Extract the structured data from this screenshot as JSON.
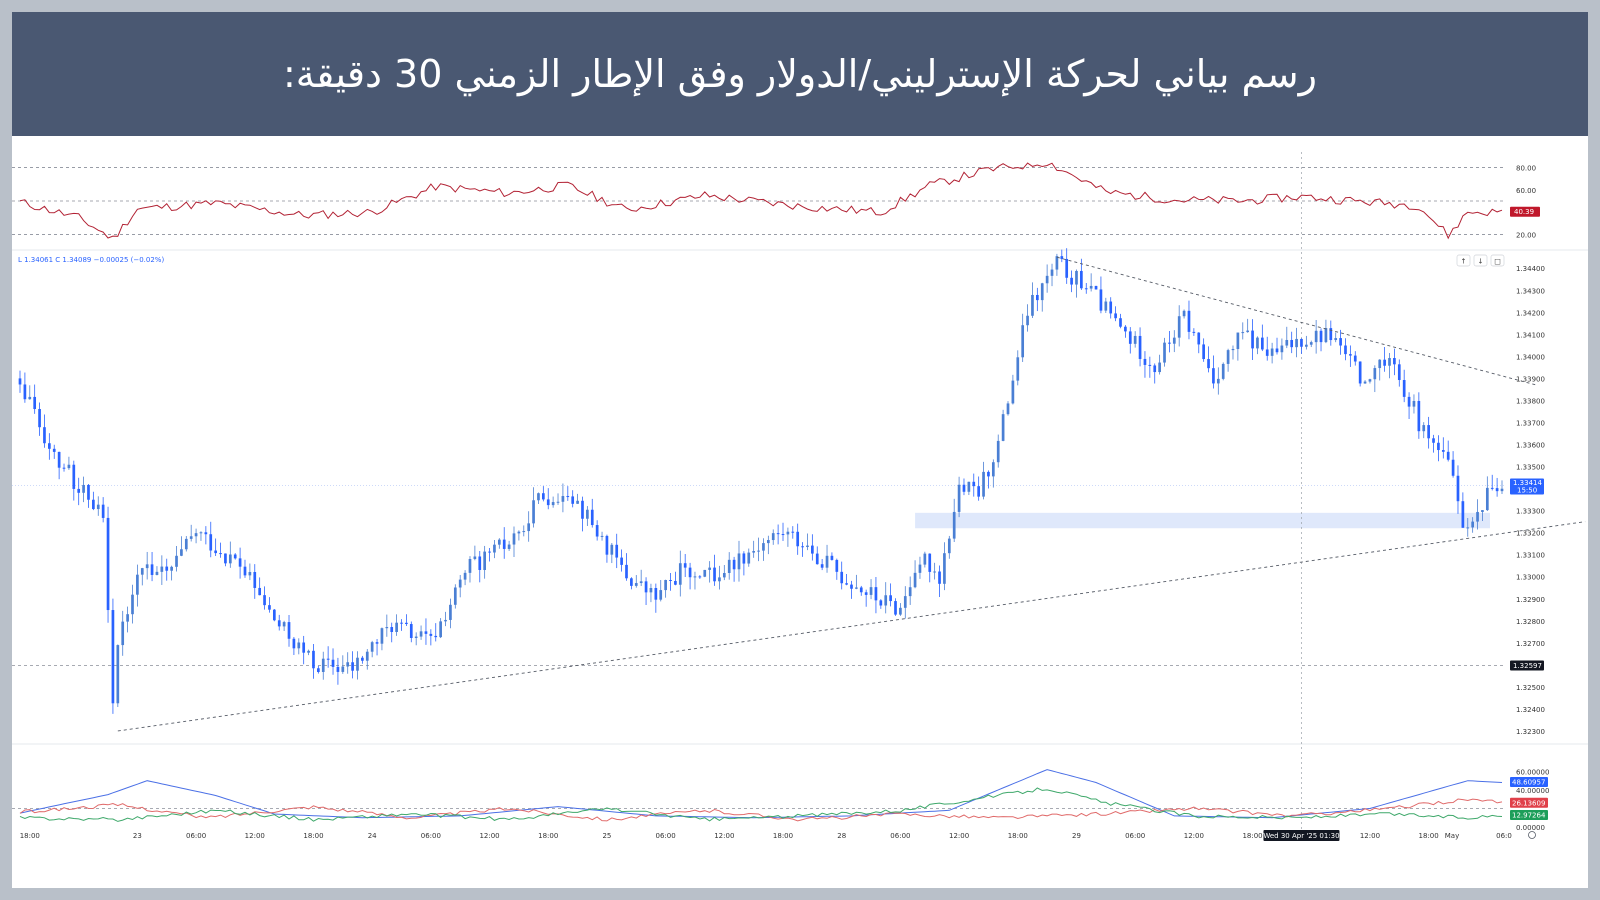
{
  "title": "رسم بياني لحركة الإسترليني/الدولار وفق الإطار الزمني 30 دقيقة:",
  "colors": {
    "header_bg": "#4a5872",
    "bull_candle": "#4a7fd4",
    "bear_candle": "#2962ff",
    "rsi_line": "#b22234",
    "support_zone": "#dbe6fb",
    "adx_line": "#4b70e6",
    "di_plus_line": "#3ea86a",
    "di_minus_line": "#e06a6a"
  },
  "info_line": "L 1.34061  C 1.34089  −0.00025 (−0.02%)",
  "chart_data": [
    {
      "type": "candlestick",
      "panel": "price",
      "ylim": [
        1.3225,
        1.3446
      ],
      "y_ticks": [
        "1.34400",
        "1.34300",
        "1.34200",
        "1.34100",
        "1.34000",
        "1.33900",
        "1.33800",
        "1.33700",
        "1.33600",
        "1.33500",
        "1.33300",
        "1.33200",
        "1.33100",
        "1.33000",
        "1.32900",
        "1.32800",
        "1.32700",
        "1.32500",
        "1.32400",
        "1.32300"
      ],
      "x_ticks": [
        "18:00",
        "23",
        "06:00",
        "12:00",
        "18:00",
        "24",
        "06:00",
        "12:00",
        "18:00",
        "25",
        "06:00",
        "12:00",
        "18:00",
        "28",
        "06:00",
        "12:00",
        "18:00",
        "29",
        "06:00",
        "12:00",
        "18:00",
        "Wed 30 Apr '25  01:30",
        "12:00",
        "18:00",
        "May",
        "06:0"
      ],
      "path_anchors": [
        [
          0,
          1.339
        ],
        [
          6,
          1.336
        ],
        [
          12,
          1.334
        ],
        [
          17,
          1.333
        ],
        [
          19,
          1.3245
        ],
        [
          20,
          1.3268
        ],
        [
          24,
          1.3305
        ],
        [
          30,
          1.33
        ],
        [
          36,
          1.332
        ],
        [
          45,
          1.3305
        ],
        [
          52,
          1.328
        ],
        [
          60,
          1.326
        ],
        [
          68,
          1.3258
        ],
        [
          76,
          1.3278
        ],
        [
          84,
          1.327
        ],
        [
          92,
          1.3305
        ],
        [
          100,
          1.3315
        ],
        [
          106,
          1.3335
        ],
        [
          112,
          1.334
        ],
        [
          118,
          1.332
        ],
        [
          124,
          1.33
        ],
        [
          130,
          1.329
        ],
        [
          136,
          1.3305
        ],
        [
          142,
          1.33
        ],
        [
          148,
          1.331
        ],
        [
          156,
          1.332
        ],
        [
          162,
          1.3312
        ],
        [
          168,
          1.33
        ],
        [
          175,
          1.329
        ],
        [
          180,
          1.3285
        ],
        [
          184,
          1.331
        ],
        [
          188,
          1.33
        ],
        [
          192,
          1.334
        ],
        [
          196,
          1.3338
        ],
        [
          200,
          1.336
        ],
        [
          206,
          1.342
        ],
        [
          212,
          1.3442
        ],
        [
          218,
          1.3432
        ],
        [
          224,
          1.3415
        ],
        [
          232,
          1.3395
        ],
        [
          238,
          1.3418
        ],
        [
          244,
          1.339
        ],
        [
          250,
          1.341
        ],
        [
          256,
          1.34
        ],
        [
          262,
          1.3408
        ],
        [
          268,
          1.341
        ],
        [
          274,
          1.339
        ],
        [
          280,
          1.3402
        ],
        [
          286,
          1.337
        ],
        [
          292,
          1.335
        ],
        [
          296,
          1.3318
        ],
        [
          300,
          1.334
        ],
        [
          303,
          1.3341
        ]
      ],
      "last_price": "1.33414",
      "countdown": "15:50",
      "marked_price": "1.32597",
      "support_zone": [
        1.3322,
        1.3329
      ],
      "ascending_trendline": [
        [
          20,
          1.323
        ],
        [
          320,
          1.3325
        ]
      ],
      "descending_trendline": [
        [
          212,
          1.3445
        ],
        [
          310,
          1.3387
        ]
      ],
      "crosshair_price": 1.3341
    },
    {
      "type": "line",
      "panel": "rsi",
      "ylim": [
        15,
        85
      ],
      "y_ticks": [
        "80.00",
        "60.00",
        "20.00"
      ],
      "levels": [
        80,
        50,
        20
      ],
      "anchors": [
        [
          0,
          49
        ],
        [
          12,
          35
        ],
        [
          19,
          16
        ],
        [
          24,
          43
        ],
        [
          40,
          48
        ],
        [
          58,
          37
        ],
        [
          72,
          40
        ],
        [
          85,
          63
        ],
        [
          100,
          57
        ],
        [
          112,
          64
        ],
        [
          124,
          42
        ],
        [
          140,
          55
        ],
        [
          160,
          45
        ],
        [
          176,
          40
        ],
        [
          186,
          64
        ],
        [
          198,
          78
        ],
        [
          210,
          85
        ],
        [
          222,
          58
        ],
        [
          236,
          51
        ],
        [
          250,
          50
        ],
        [
          262,
          54
        ],
        [
          276,
          49
        ],
        [
          286,
          46
        ],
        [
          292,
          19
        ],
        [
          296,
          40
        ],
        [
          303,
          40
        ]
      ],
      "value_label": "40.39"
    },
    {
      "type": "line",
      "panel": "adx_dmi",
      "ylim": [
        0,
        68
      ],
      "y_ticks": [
        "60.00000",
        "40.00000",
        "0.00000"
      ],
      "series": [
        {
          "name": "",
          "value_label": "48.60957",
          "anchors": [
            [
              0,
              15
            ],
            [
              18,
              35
            ],
            [
              26,
              50
            ],
            [
              40,
              34
            ],
            [
              52,
              14
            ],
            [
              70,
              10
            ],
            [
              90,
              12
            ],
            [
              110,
              22
            ],
            [
              130,
              12
            ],
            [
              150,
              10
            ],
            [
              170,
              12
            ],
            [
              190,
              18
            ],
            [
              200,
              40
            ],
            [
              210,
              62
            ],
            [
              220,
              48
            ],
            [
              236,
              12
            ],
            [
              256,
              10
            ],
            [
              276,
              20
            ],
            [
              296,
              50
            ],
            [
              303,
              48
            ]
          ]
        },
        {
          "name": "",
          "value_label": "26.13609",
          "anchors": [
            [
              0,
              16
            ],
            [
              20,
              24
            ],
            [
              38,
              10
            ],
            [
              60,
              22
            ],
            [
              80,
              10
            ],
            [
              100,
              20
            ],
            [
              120,
              8
            ],
            [
              140,
              18
            ],
            [
              160,
              8
            ],
            [
              180,
              14
            ],
            [
              200,
              10
            ],
            [
              220,
              14
            ],
            [
              240,
              20
            ],
            [
              260,
              12
            ],
            [
              280,
              20
            ],
            [
              296,
              30
            ],
            [
              303,
              26
            ]
          ]
        },
        {
          "name": "",
          "value_label": "12.97264",
          "anchors": [
            [
              0,
              10
            ],
            [
              20,
              8
            ],
            [
              40,
              18
            ],
            [
              60,
              8
            ],
            [
              80,
              14
            ],
            [
              100,
              8
            ],
            [
              120,
              20
            ],
            [
              140,
              8
            ],
            [
              160,
              12
            ],
            [
              180,
              18
            ],
            [
              200,
              34
            ],
            [
              210,
              42
            ],
            [
              222,
              26
            ],
            [
              240,
              12
            ],
            [
              260,
              10
            ],
            [
              280,
              14
            ],
            [
              296,
              10
            ],
            [
              303,
              13
            ]
          ]
        }
      ]
    }
  ]
}
